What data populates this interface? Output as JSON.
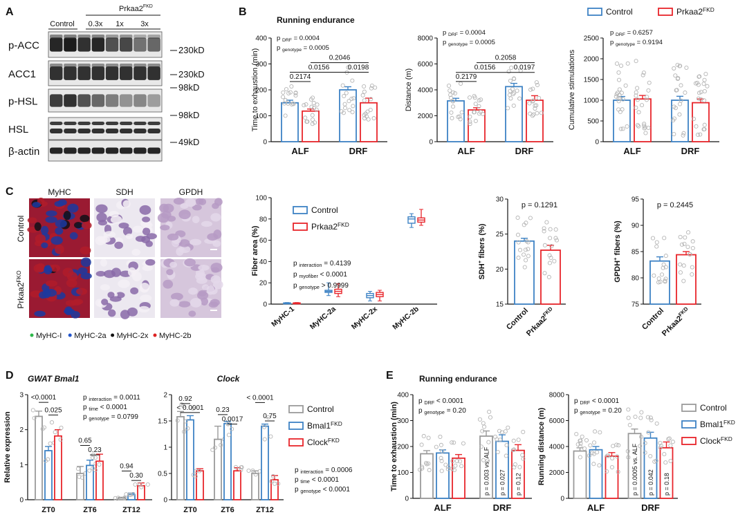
{
  "colors": {
    "control": "#3d82c4",
    "ko": "#e8242a",
    "grey": "#9a9a9a",
    "bg": "#ffffff",
    "ink": "#111111"
  },
  "panels": {
    "A": "A",
    "B": "B",
    "C": "C",
    "D": "D",
    "E": "E"
  },
  "panel_a": {
    "group_label": "Prkaa2",
    "group_sup": "FKD",
    "lanes": [
      "Control",
      "0.3x",
      "1x",
      "3x"
    ],
    "rows": [
      {
        "name": "p-ACC",
        "kd": "230kD"
      },
      {
        "name": "ACC1",
        "kd": "230kD"
      },
      {
        "name": "p-HSL",
        "kd": "98kD"
      },
      {
        "name": "HSL",
        "kd": "98kD"
      },
      {
        "name": "β-actin",
        "kd": "49kD"
      }
    ]
  },
  "panel_b": {
    "title": "Running endurance",
    "legend": [
      {
        "label": "Control",
        "color": "#3d82c4"
      },
      {
        "label": "Prkaa2",
        "sup": "FKD",
        "color": "#e8242a"
      }
    ]
  },
  "panel_c": {
    "image_cols": [
      "MyHC",
      "SDH",
      "GPDH"
    ],
    "image_rows": [
      {
        "label": "Control"
      },
      {
        "label": "Prkaa2",
        "sup": "FKO"
      }
    ],
    "stain_legend": [
      {
        "label": "MyHC-I",
        "color": "#2db84a"
      },
      {
        "label": "MyHC-2a",
        "color": "#2255cc"
      },
      {
        "label": "MyHC-2x",
        "color": "#111111"
      },
      {
        "label": "MyHC-2b",
        "color": "#dd2222"
      }
    ],
    "box_legend": [
      {
        "label": "Control"
      },
      {
        "label": "Prkaa2",
        "sup": "FKD"
      }
    ]
  },
  "panel_d": {
    "legend": [
      {
        "label": "Control"
      },
      {
        "label": "Bmal1",
        "sup": "FKD"
      },
      {
        "label": "Clock",
        "sup": "FKD"
      }
    ]
  },
  "panel_e": {
    "title": "Running endurance",
    "legend": [
      {
        "label": "Control"
      },
      {
        "label": "Bmal1",
        "sup": "FKD"
      },
      {
        "label": "Clock",
        "sup": "FKD"
      }
    ]
  },
  "chart_data": [
    {
      "id": "B1",
      "type": "bar",
      "ylabel": "Time to exhaustion (min)",
      "ylim": [
        0,
        400
      ],
      "yticks": [
        0,
        100,
        200,
        300,
        400
      ],
      "categories": [
        "ALF",
        "DRF"
      ],
      "series": [
        {
          "name": "Control",
          "values": [
            150,
            200
          ],
          "errors": [
            10,
            12
          ]
        },
        {
          "name": "Prkaa2FKD",
          "values": [
            118,
            150
          ],
          "errors": [
            8,
            18
          ]
        }
      ],
      "stats": [
        "p DRF = 0.0004",
        "p genotype = 0.0005"
      ],
      "brackets": [
        {
          "label": "0.2174"
        },
        {
          "label": "0.0156"
        },
        {
          "label": "0.2046"
        },
        {
          "label": "0.0198"
        }
      ]
    },
    {
      "id": "B2",
      "type": "bar",
      "ylabel": "Distance (m)",
      "ylim": [
        0,
        8000
      ],
      "yticks": [
        0,
        2000,
        4000,
        6000,
        8000
      ],
      "categories": [
        "ALF",
        "DRF"
      ],
      "series": [
        {
          "name": "Control",
          "values": [
            3150,
            4250
          ],
          "errors": [
            200,
            250
          ]
        },
        {
          "name": "Prkaa2FKD",
          "values": [
            2450,
            3200
          ],
          "errors": [
            170,
            350
          ]
        }
      ],
      "stats": [
        "p DRF = 0.0004",
        "p genotype = 0.0005"
      ],
      "brackets": [
        {
          "label": "0.2179"
        },
        {
          "label": "0.0156"
        },
        {
          "label": "0.2058"
        },
        {
          "label": "0.0197"
        }
      ]
    },
    {
      "id": "B3",
      "type": "bar",
      "ylabel": "Cumulative stimulations",
      "ylim": [
        0,
        2500
      ],
      "yticks": [
        0,
        500,
        1000,
        1500,
        2000,
        2500
      ],
      "categories": [
        "ALF",
        "DRF"
      ],
      "series": [
        {
          "name": "Control",
          "values": [
            1000,
            1000
          ],
          "errors": [
            90,
            95
          ]
        },
        {
          "name": "Prkaa2FKD",
          "values": [
            1030,
            940
          ],
          "errors": [
            85,
            90
          ]
        }
      ],
      "stats": [
        "p DRF = 0.6257",
        "p genotype = 0.9194"
      ],
      "brackets": []
    },
    {
      "id": "C1",
      "type": "box",
      "ylabel": "Fiber area (%)",
      "ylim": [
        0,
        100
      ],
      "yticks": [
        0,
        20,
        40,
        60,
        80,
        100
      ],
      "categories": [
        "MyHC-1",
        "MyHC-2a",
        "MyHC-2x",
        "MyHC-2b"
      ],
      "series": [
        {
          "name": "Control",
          "boxes": [
            [
              0.5,
              0.8,
              1,
              1.2,
              1.5
            ],
            [
              8,
              11,
              12,
              13,
              20
            ],
            [
              3,
              6,
              8,
              10,
              12
            ],
            [
              72,
              76,
              80,
              82,
              85
            ]
          ]
        },
        {
          "name": "Prkaa2FKD",
          "boxes": [
            [
              0.5,
              0.8,
              1,
              1.2,
              1.5
            ],
            [
              7,
              10,
              12,
              14,
              19
            ],
            [
              3,
              7,
              9,
              11,
              13
            ],
            [
              74,
              77,
              79,
              81,
              89
            ]
          ]
        }
      ],
      "stats": [
        "p interaction = 0.4139",
        "p myofiber < 0.0001",
        "p genotype > 0.9999"
      ]
    },
    {
      "id": "C2",
      "type": "bar",
      "ylabel": "SDH",
      "ylabel_sup": "+",
      "ylabel_tail": " fibers (%)",
      "ylim": [
        15,
        30
      ],
      "yticks": [
        15,
        20,
        25,
        30
      ],
      "categories": [
        "Control",
        "Prkaa2"
      ],
      "category_sups": [
        "",
        "FKD"
      ],
      "series": [
        {
          "name": "Control",
          "values": [
            24.0,
            null
          ],
          "errors": [
            0.4,
            null
          ]
        },
        {
          "name": "Prkaa2FKD",
          "values": [
            null,
            22.7
          ],
          "errors": [
            null,
            0.7
          ]
        }
      ],
      "pvalue": "p = 0.1291"
    },
    {
      "id": "C3",
      "type": "bar",
      "ylabel": "GPDH",
      "ylabel_sup": "+",
      "ylabel_tail": " fibers (%)",
      "ylim": [
        75,
        95
      ],
      "yticks": [
        75,
        80,
        85,
        90,
        95
      ],
      "categories": [
        "Control",
        "Prkaa2"
      ],
      "category_sups": [
        "",
        "FKD"
      ],
      "series": [
        {
          "name": "Control",
          "values": [
            83.2,
            null
          ],
          "errors": [
            0.8,
            null
          ]
        },
        {
          "name": "Prkaa2FKD",
          "values": [
            null,
            84.4
          ],
          "errors": [
            null,
            0.6
          ]
        }
      ],
      "pvalue": "p = 0.2445"
    },
    {
      "id": "D1",
      "type": "bar",
      "title": "GWAT",
      "title_italic": "Bmal1",
      "ylabel": "Relative expression",
      "ylim": [
        0,
        3
      ],
      "yticks": [
        0,
        1,
        2,
        3
      ],
      "categories": [
        "ZT0",
        "ZT6",
        "ZT12"
      ],
      "series": [
        {
          "name": "Control",
          "values": [
            2.38,
            0.75,
            0.05
          ],
          "errors": [
            0.15,
            0.2,
            0.02
          ]
        },
        {
          "name": "Bmal1FKD",
          "values": [
            1.4,
            0.98,
            0.15
          ],
          "errors": [
            0.12,
            0.15,
            0.04
          ]
        },
        {
          "name": "ClockFKD",
          "values": [
            1.82,
            1.1,
            0.4
          ],
          "errors": [
            0.18,
            0.2,
            0.08
          ]
        }
      ],
      "stats": [
        "p interaction = 0.0011",
        "p time < 0.0001",
        "p genotype = 0.0799"
      ],
      "brackets": [
        {
          "label": "<0.0001"
        },
        {
          "label": "0.025"
        },
        {
          "label": "0.65"
        },
        {
          "label": "0.23"
        },
        {
          "label": "0.94"
        },
        {
          "label": "0.30"
        }
      ]
    },
    {
      "id": "D2",
      "type": "bar",
      "title_italic": "Clock",
      "ylim": [
        0,
        2
      ],
      "yticks": [
        0,
        0.5,
        1,
        1.5,
        2
      ],
      "categories": [
        "ZT0",
        "ZT6",
        "ZT12"
      ],
      "series": [
        {
          "name": "Control",
          "values": [
            1.58,
            1.15,
            0.5
          ],
          "errors": [
            0.1,
            0.25,
            0.05
          ]
        },
        {
          "name": "Bmal1FKD",
          "values": [
            1.52,
            1.45,
            1.4
          ],
          "errors": [
            0.08,
            0.04,
            0.04
          ]
        },
        {
          "name": "ClockFKD",
          "values": [
            0.55,
            0.55,
            0.38
          ],
          "errors": [
            0.04,
            0.06,
            0.08
          ]
        }
      ],
      "stats": [
        "p interaction = 0.0006",
        "p time < 0.0001",
        "p genotype < 0.0001"
      ],
      "brackets": [
        {
          "label": "0.92"
        },
        {
          "label": "< 0.0001"
        },
        {
          "label": "0.23"
        },
        {
          "label": "0.0017"
        },
        {
          "label": "< 0.0001"
        },
        {
          "label": "0.75"
        }
      ]
    },
    {
      "id": "E1",
      "type": "bar",
      "ylabel": "Time to exhaustion (min)",
      "ylim": [
        0,
        400
      ],
      "yticks": [
        0,
        100,
        200,
        300,
        400
      ],
      "categories": [
        "ALF",
        "DRF"
      ],
      "series": [
        {
          "name": "Control",
          "values": [
            172,
            240
          ],
          "errors": [
            12,
            20
          ]
        },
        {
          "name": "Bmal1FKD",
          "values": [
            175,
            220
          ],
          "errors": [
            12,
            25
          ]
        },
        {
          "name": "ClockFKD",
          "values": [
            155,
            185
          ],
          "errors": [
            14,
            22
          ]
        }
      ],
      "stats": [
        "p DRF < 0.0001",
        "p genotype = 0.20"
      ],
      "bar_labels": [
        "p = 0.003 vs. ALF",
        "p = 0.027",
        "p = 0.12"
      ]
    },
    {
      "id": "E2",
      "type": "bar",
      "ylabel": "Running distance (m)",
      "ylim": [
        0,
        8000
      ],
      "yticks": [
        0,
        2000,
        4000,
        6000,
        8000
      ],
      "categories": [
        "ALF",
        "DRF"
      ],
      "series": [
        {
          "name": "Control",
          "values": [
            3650,
            5000
          ],
          "errors": [
            250,
            350
          ]
        },
        {
          "name": "Bmal1FKD",
          "values": [
            3750,
            4650
          ],
          "errors": [
            250,
            450
          ]
        },
        {
          "name": "ClockFKD",
          "values": [
            3250,
            3900
          ],
          "errors": [
            280,
            450
          ]
        }
      ],
      "stats": [
        "p DRF < 0.0001",
        "p genotype = 0.20"
      ],
      "bar_labels": [
        "p = 0.0005 vs. ALF",
        "p = 0.042",
        "p = 0.18"
      ]
    }
  ]
}
